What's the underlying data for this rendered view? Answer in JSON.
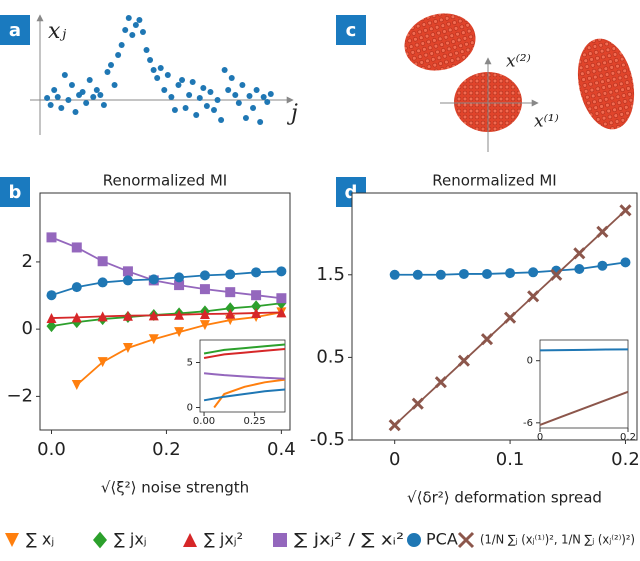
{
  "panel_labels": [
    "a",
    "b",
    "c",
    "d"
  ],
  "panel_c": {
    "x_label": "x⁽¹⁾",
    "y_label": "x⁽²⁾"
  },
  "chart_data": [
    {
      "type": "scatter",
      "xlabel": "j",
      "ylabel": "xⱼ",
      "color": "#1f77b4",
      "xlim": [
        -1,
        68
      ],
      "ylim": [
        -3.5,
        9
      ],
      "x": [
        1,
        2,
        3,
        4,
        5,
        6,
        7,
        8,
        9,
        10,
        11,
        12,
        13,
        14,
        15,
        16,
        17,
        18,
        19,
        20,
        21,
        22,
        23,
        24,
        25,
        26,
        27,
        28,
        29,
        30,
        31,
        32,
        33,
        34,
        35,
        36,
        37,
        38,
        39,
        40,
        41,
        42,
        43,
        44,
        45,
        46,
        47,
        48,
        49,
        50,
        51,
        52,
        53,
        54,
        55,
        56,
        57,
        58,
        59,
        60,
        61,
        62,
        63,
        64
      ],
      "values": [
        0.2,
        -0.5,
        1.0,
        0.3,
        -0.8,
        2.5,
        0.0,
        1.5,
        -1.2,
        0.5,
        0.8,
        -0.3,
        2.0,
        0.3,
        1.0,
        0.5,
        -0.5,
        2.8,
        3.5,
        1.5,
        4.5,
        5.5,
        7.0,
        8.2,
        6.5,
        7.5,
        8.0,
        6.8,
        5.0,
        4.0,
        3.0,
        2.2,
        3.2,
        1.0,
        2.5,
        0.3,
        -1.0,
        1.5,
        2.0,
        -0.8,
        0.5,
        1.8,
        -1.5,
        0.2,
        1.2,
        -0.6,
        0.8,
        -1.0,
        0.0,
        -2.0,
        3.0,
        1.0,
        2.2,
        0.5,
        -0.3,
        1.5,
        -1.8,
        0.4,
        -0.8,
        1.0,
        -2.2,
        0.3,
        -0.2,
        0.6
      ]
    },
    {
      "type": "line",
      "title": "Renormalized MI",
      "xlabel": "√⟨ξ²⟩  noise strength",
      "xlim": [
        -0.02,
        0.415
      ],
      "ylim": [
        -3.0,
        4.05
      ],
      "xticks": [
        {
          "value": 0,
          "label": "0.0"
        },
        0.2,
        0.4
      ],
      "yticks": [
        {
          "value": -2,
          "label": "−2"
        },
        0,
        2
      ],
      "x": [
        0,
        0.044,
        0.089,
        0.133,
        0.178,
        0.222,
        0.267,
        0.311,
        0.356,
        0.4
      ],
      "series": [
        {
          "name": "∑ xⱼ",
          "color": "#ff7f0e",
          "marker": "v",
          "values": [
            null,
            -1.66,
            -0.98,
            -0.56,
            -0.3,
            -0.09,
            0.12,
            0.27,
            0.36,
            0.5
          ]
        },
        {
          "name": "∑ jxⱼ",
          "color": "#2ca02c",
          "marker": "D",
          "values": [
            0.09,
            0.21,
            0.3,
            0.36,
            0.42,
            0.47,
            0.53,
            0.62,
            0.68,
            0.77
          ]
        },
        {
          "name": "∑ jxⱼ²",
          "color": "#d62728",
          "marker": "^",
          "values": [
            0.33,
            0.35,
            0.38,
            0.4,
            0.41,
            0.43,
            0.45,
            0.46,
            0.48,
            0.5
          ]
        },
        {
          "name": "∑ jxⱼ² / ∑ xᵢ²",
          "color": "#9467bd",
          "marker": "s",
          "values": [
            2.73,
            2.43,
            2.02,
            1.72,
            1.45,
            1.31,
            1.19,
            1.1,
            1.01,
            0.92
          ]
        },
        {
          "name": "PCA",
          "color": "#1f77b4",
          "marker": "o",
          "values": [
            1.01,
            1.25,
            1.39,
            1.45,
            1.48,
            1.54,
            1.6,
            1.63,
            1.69,
            1.72
          ]
        }
      ]
    },
    {
      "type": "line",
      "xlim": [
        -0.02,
        0.4
      ],
      "ylim": [
        -0.5,
        7.5
      ],
      "xticks": [
        {
          "value": 0,
          "label": "0.00"
        },
        0.25
      ],
      "yticks": [
        0,
        5
      ],
      "x": [
        0,
        0.05,
        0.1,
        0.2,
        0.3,
        0.4
      ],
      "series": [
        {
          "color": "#ff7f0e",
          "values": [
            null,
            0.0,
            1.5,
            2.3,
            2.8,
            3.1
          ]
        },
        {
          "color": "#2ca02c",
          "values": [
            6.0,
            6.2,
            6.4,
            6.6,
            6.8,
            7.0
          ]
        },
        {
          "color": "#d62728",
          "values": [
            5.5,
            5.7,
            5.9,
            6.1,
            6.3,
            6.5
          ]
        },
        {
          "color": "#9467bd",
          "values": [
            3.8,
            3.7,
            3.6,
            3.45,
            3.3,
            3.2
          ]
        },
        {
          "color": "#1f77b4",
          "values": [
            0.8,
            1.0,
            1.2,
            1.5,
            1.8,
            2.0
          ]
        }
      ]
    },
    {
      "type": "line",
      "title": "Renormalized MI",
      "xlabel": "√⟨δr²⟩  deformation spread",
      "xlim": [
        -0.037,
        0.21
      ],
      "ylim": [
        -0.5,
        2.49
      ],
      "xticks": [
        0,
        0.1,
        0.2
      ],
      "yticks": [
        -0.5,
        0.5,
        1.5
      ],
      "x": [
        0,
        0.02,
        0.04,
        0.06,
        0.08,
        0.1,
        0.12,
        0.14,
        0.16,
        0.18,
        0.2
      ],
      "series": [
        {
          "color": "#1f77b4",
          "marker": "o",
          "values": [
            1.5,
            1.5,
            1.5,
            1.51,
            1.51,
            1.52,
            1.53,
            1.55,
            1.57,
            1.61,
            1.65
          ]
        },
        {
          "name": "(1/N ∑ⱼ (xⱼ⁽¹⁾)², 1/N ∑ⱼ (xⱼ⁽²⁾)²)",
          "color": "#8c564b",
          "marker": "x",
          "values": [
            -0.32,
            -0.06,
            0.2,
            0.46,
            0.72,
            0.98,
            1.24,
            1.5,
            1.76,
            2.02,
            2.28
          ]
        }
      ]
    },
    {
      "type": "line",
      "xlim": [
        0,
        0.2
      ],
      "ylim": [
        -6.5,
        2
      ],
      "xticks": [
        0,
        0.2
      ],
      "yticks": [
        -6,
        0
      ],
      "x": [
        0,
        0.05,
        0.1,
        0.15,
        0.2
      ],
      "series": [
        {
          "color": "#1f77b4",
          "values": [
            1.0,
            1.02,
            1.05,
            1.08,
            1.1
          ]
        },
        {
          "color": "#8c564b",
          "values": [
            -6.2,
            -5.4,
            -4.6,
            -3.8,
            -3.0
          ]
        }
      ]
    }
  ]
}
